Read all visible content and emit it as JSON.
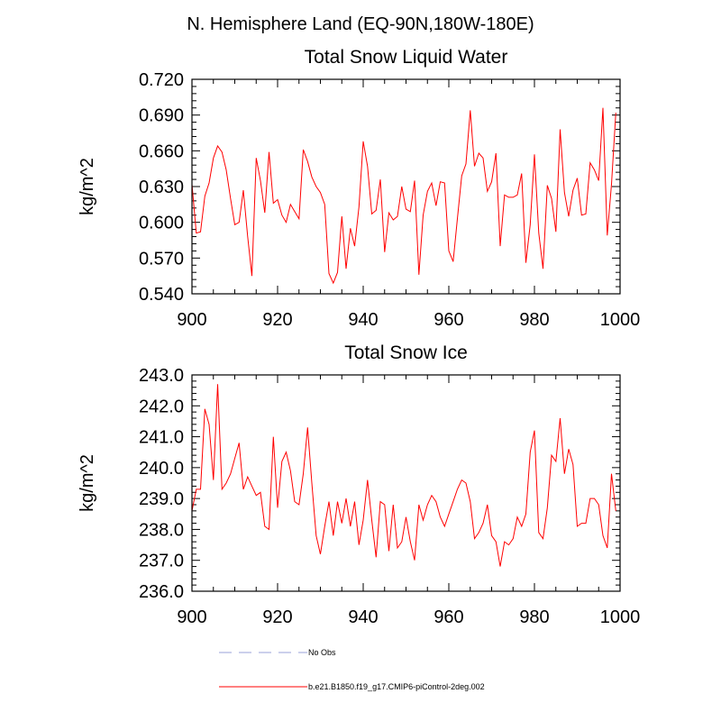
{
  "page_title": "N. Hemisphere Land (EQ-90N,180W-180E)",
  "colors": {
    "series": "#ff0000",
    "no_obs": "#9aa2d8",
    "axis": "#000000"
  },
  "legend": [
    {
      "label": "No Obs",
      "style": "dashed",
      "color": "#9aa2d8"
    },
    {
      "label": "b.e21.B1850.f19_g17.CMIP6-piControl-2deg.002",
      "style": "solid",
      "color": "#ff0000"
    }
  ],
  "chart_data": [
    {
      "type": "line",
      "title": "Total Snow Liquid Water",
      "xlabel": "",
      "ylabel": "kg/m^2",
      "xlim": [
        900,
        1000
      ],
      "ylim": [
        0.54,
        0.72
      ],
      "xticks": [
        "900",
        "920",
        "940",
        "960",
        "980",
        "1000"
      ],
      "yticks": [
        "0.540",
        "0.570",
        "0.600",
        "0.630",
        "0.660",
        "0.690",
        "0.720"
      ],
      "series": [
        {
          "name": "b.e21.B1850.f19_g17.CMIP6-piControl-2deg.002",
          "x_start": 900,
          "x_step": 1,
          "values": [
            0.632,
            0.591,
            0.592,
            0.622,
            0.633,
            0.654,
            0.664,
            0.659,
            0.644,
            0.62,
            0.598,
            0.6,
            0.627,
            0.588,
            0.555,
            0.654,
            0.635,
            0.608,
            0.659,
            0.616,
            0.619,
            0.606,
            0.6,
            0.615,
            0.609,
            0.603,
            0.661,
            0.651,
            0.638,
            0.63,
            0.625,
            0.615,
            0.557,
            0.549,
            0.558,
            0.605,
            0.561,
            0.595,
            0.58,
            0.613,
            0.668,
            0.647,
            0.607,
            0.61,
            0.636,
            0.575,
            0.608,
            0.602,
            0.605,
            0.63,
            0.611,
            0.609,
            0.635,
            0.556,
            0.606,
            0.626,
            0.633,
            0.614,
            0.634,
            0.633,
            0.576,
            0.567,
            0.603,
            0.639,
            0.649,
            0.694,
            0.647,
            0.658,
            0.654,
            0.626,
            0.634,
            0.658,
            0.58,
            0.623,
            0.621,
            0.621,
            0.623,
            0.641,
            0.566,
            0.598,
            0.657,
            0.591,
            0.561,
            0.631,
            0.62,
            0.592,
            0.678,
            0.625,
            0.605,
            0.627,
            0.637,
            0.606,
            0.607,
            0.65,
            0.644,
            0.635,
            0.696,
            0.589,
            0.632,
            0.692
          ]
        }
      ]
    },
    {
      "type": "line",
      "title": "Total Snow Ice",
      "xlabel": "",
      "ylabel": "kg/m^2",
      "xlim": [
        900,
        1000
      ],
      "ylim": [
        236.0,
        243.0
      ],
      "xticks": [
        "900",
        "920",
        "940",
        "960",
        "980",
        "1000"
      ],
      "yticks": [
        "236.0",
        "237.0",
        "238.0",
        "239.0",
        "240.0",
        "241.0",
        "242.0",
        "243.0"
      ],
      "series": [
        {
          "name": "b.e21.B1850.f19_g17.CMIP6-piControl-2deg.002",
          "x_start": 900,
          "x_step": 1,
          "values": [
            238.6,
            239.3,
            239.3,
            241.9,
            241.4,
            239.6,
            242.7,
            239.3,
            239.5,
            239.8,
            240.3,
            240.8,
            239.3,
            239.7,
            239.4,
            239.1,
            239.2,
            238.1,
            238.0,
            241.0,
            238.7,
            240.2,
            240.5,
            239.9,
            238.9,
            238.8,
            239.8,
            241.3,
            239.5,
            237.8,
            237.2,
            238.1,
            238.9,
            237.8,
            238.9,
            238.2,
            239.0,
            238.1,
            238.9,
            237.5,
            238.3,
            239.6,
            238.3,
            237.1,
            238.9,
            238.8,
            237.3,
            238.8,
            237.4,
            237.6,
            238.4,
            237.6,
            237.0,
            238.8,
            238.3,
            238.8,
            239.1,
            238.9,
            238.4,
            238.1,
            238.5,
            238.9,
            239.3,
            239.6,
            239.5,
            238.9,
            237.7,
            237.9,
            238.2,
            238.8,
            237.8,
            237.6,
            236.8,
            237.6,
            237.5,
            237.7,
            238.4,
            238.1,
            238.5,
            240.5,
            241.2,
            237.9,
            237.7,
            238.7,
            240.4,
            240.2,
            241.6,
            239.8,
            240.6,
            240.1,
            238.1,
            238.2,
            238.2,
            239.0,
            239.0,
            238.8,
            237.8,
            237.4,
            239.8,
            238.6
          ]
        }
      ]
    }
  ]
}
